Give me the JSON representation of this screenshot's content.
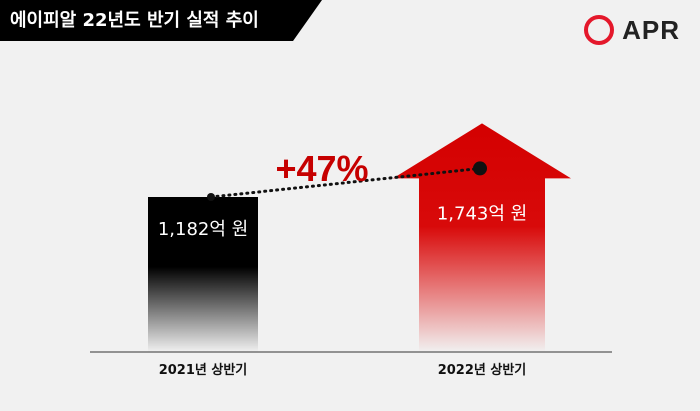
{
  "header": {
    "title": "에이피알 22년도 반기 실적 추이",
    "logo_text": "APR"
  },
  "colors": {
    "background": "#f1f1f1",
    "bar_2021": "#000000",
    "bar_2022": "#d40000",
    "growth_label": "#c60000",
    "logo_ring": "#e4182b"
  },
  "chart_data": {
    "type": "bar",
    "title": "에이피알 22년도 반기 실적 추이",
    "categories": [
      "2021년 상반기",
      "2022년 상반기"
    ],
    "values": [
      1182,
      1743
    ],
    "value_labels": [
      "1,182억 원",
      "1,743억 원"
    ],
    "unit": "억 원",
    "growth_label": "+47%",
    "xlabel": "",
    "ylabel": "",
    "ylim": [
      0,
      2000
    ],
    "grid": false,
    "legend": "none"
  }
}
